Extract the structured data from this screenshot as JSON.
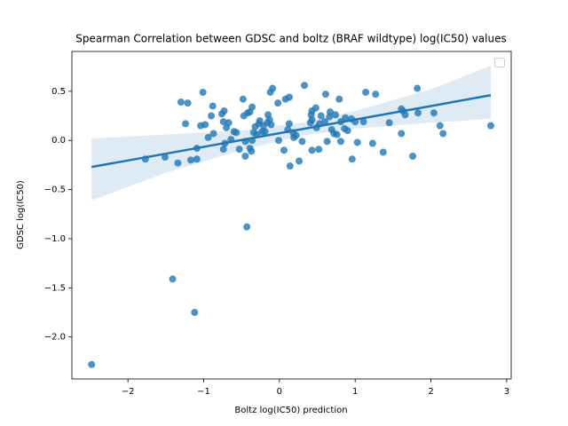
{
  "chart_data": {
    "type": "scatter",
    "title": "Spearman Correlation between GDSC and boltz (BRAF wildtype) log(IC50) values",
    "x_label": "Boltz log(IC50) prediction",
    "y_label": "GDSC log(IC50)",
    "color": "#1f77b4",
    "band_color": "#1f77b4",
    "x": [
      -2.48,
      -1.41,
      -1.12,
      -0.43,
      -1.77,
      -1.51,
      -1.34,
      -1.17,
      -1.09,
      -1.09,
      -1.3,
      -1.21,
      -1.01,
      -1.24,
      -1.04,
      -0.98,
      -0.94,
      -0.87,
      -0.9,
      -0.88,
      -0.76,
      -0.73,
      -0.74,
      -0.7,
      -0.67,
      -0.64,
      -0.72,
      -0.74,
      -0.6,
      -0.57,
      -0.53,
      -0.48,
      -0.47,
      -0.45,
      -0.45,
      -0.42,
      -0.39,
      -0.36,
      -0.39,
      -0.37,
      -0.36,
      -0.34,
      -0.32,
      -0.3,
      -0.27,
      -0.26,
      -0.23,
      -0.21,
      -0.19,
      -0.16,
      -0.15,
      -0.13,
      -0.12,
      -0.09,
      -0.11,
      -0.02,
      -0.01,
      0.06,
      0.08,
      0.13,
      0.11,
      0.13,
      0.14,
      0.18,
      0.19,
      0.22,
      0.26,
      0.3,
      0.33,
      0.41,
      0.42,
      0.43,
      0.43,
      0.43,
      0.48,
      0.49,
      0.52,
      0.53,
      0.55,
      0.6,
      0.61,
      0.63,
      0.66,
      0.67,
      0.69,
      0.72,
      0.74,
      0.76,
      0.79,
      0.81,
      0.81,
      0.86,
      0.87,
      0.9,
      0.96,
      0.95,
      1.0,
      1.03,
      1.11,
      1.14,
      1.23,
      1.27,
      1.37,
      1.45,
      1.61,
      1.63,
      1.61,
      1.66,
      1.76,
      1.83,
      1.82,
      2.04,
      2.12,
      2.16,
      2.79
    ],
    "values": [
      -2.28,
      -1.41,
      -1.75,
      -0.88,
      -0.19,
      -0.17,
      -0.23,
      -0.2,
      -0.19,
      -0.08,
      0.39,
      0.38,
      0.49,
      0.17,
      0.15,
      0.16,
      0.03,
      0.07,
      0.25,
      0.35,
      0.27,
      0.3,
      0.19,
      0.13,
      0.18,
      0.01,
      -0.03,
      -0.09,
      0.09,
      0.08,
      -0.09,
      0.42,
      0.25,
      -0.01,
      -0.16,
      0.28,
      0.29,
      0.34,
      -0.08,
      -0.11,
      0.0,
      0.08,
      0.14,
      0.06,
      0.17,
      0.2,
      0.09,
      0.15,
      0.09,
      0.18,
      0.26,
      0.21,
      0.49,
      0.53,
      0.16,
      0.38,
      0.0,
      -0.1,
      0.42,
      0.44,
      0.11,
      0.17,
      -0.26,
      0.08,
      0.03,
      0.05,
      -0.21,
      -0.01,
      0.56,
      0.18,
      0.26,
      0.3,
      0.21,
      -0.1,
      0.33,
      0.13,
      -0.09,
      0.17,
      0.25,
      0.19,
      0.47,
      -0.01,
      0.24,
      0.29,
      0.11,
      0.07,
      0.26,
      0.06,
      0.42,
      -0.01,
      0.19,
      0.12,
      0.23,
      0.1,
      -0.19,
      0.22,
      0.19,
      -0.02,
      0.19,
      0.49,
      -0.03,
      0.47,
      -0.12,
      0.18,
      0.32,
      0.3,
      0.07,
      0.26,
      -0.16,
      0.28,
      0.53,
      0.28,
      0.15,
      0.07,
      0.15
    ],
    "fit": {
      "x": [
        -2.48,
        -1.5,
        -0.5,
        0.3,
        1,
        2,
        2.79
      ],
      "values": [
        -0.27,
        -0.135,
        0.004,
        0.115,
        0.212,
        0.35,
        0.46
      ],
      "upper": [
        0.02,
        0.06,
        0.1,
        0.18,
        0.3,
        0.52,
        0.76
      ],
      "lower": [
        -0.61,
        -0.33,
        -0.1,
        0.05,
        0.12,
        0.18,
        0.22
      ]
    },
    "xlim": [
      -2.74,
      3.06
    ],
    "ylim": [
      -2.427,
      0.905
    ],
    "xticks": [
      {
        "value": -2,
        "label": "−2"
      },
      {
        "value": -1,
        "label": "−1"
      },
      0,
      1,
      2,
      3
    ],
    "yticks": [
      {
        "value": -2.0,
        "label": "−2.0"
      },
      {
        "value": -1.5,
        "label": "−1.5"
      },
      {
        "value": -1.0,
        "label": "−1.0"
      },
      {
        "value": -0.5,
        "label": "−0.5"
      },
      {
        "value": 0.0,
        "label": "0.0"
      },
      0.5
    ],
    "grid": false
  }
}
